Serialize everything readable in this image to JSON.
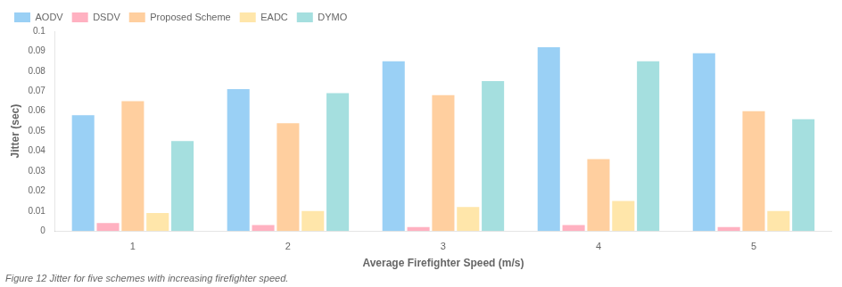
{
  "chart_data": {
    "type": "bar",
    "title": "Figure 12 Jitter for five schemes with increasing firefighter speed.",
    "xlabel": "Average Firefighter Speed (m/s)",
    "ylabel": "Jitter (sec)",
    "categories": [
      1,
      2,
      3,
      4,
      5
    ],
    "series": [
      {
        "name": "AODV",
        "values": [
          0.058,
          0.071,
          0.085,
          0.092,
          0.089
        ]
      },
      {
        "name": "DSDV",
        "values": [
          0.004,
          0.003,
          0.002,
          0.003,
          0.002
        ]
      },
      {
        "name": "Proposed Scheme",
        "values": [
          0.065,
          0.054,
          0.068,
          0.036,
          0.06
        ]
      },
      {
        "name": "EADC",
        "values": [
          0.009,
          0.01,
          0.012,
          0.015,
          0.01
        ]
      },
      {
        "name": "DYMO",
        "values": [
          0.045,
          0.069,
          0.075,
          0.085,
          0.056
        ]
      }
    ],
    "ylim": [
      0,
      0.1
    ],
    "yticks": [
      0,
      0.01,
      0.02,
      0.03,
      0.04,
      0.05,
      0.06,
      0.07,
      0.08,
      0.09,
      0.1
    ],
    "grid": false,
    "legend": "upper left"
  }
}
